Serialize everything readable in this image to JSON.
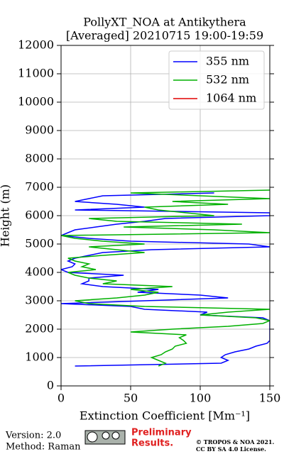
{
  "chart_data": {
    "type": "profile",
    "title": "PollyXT_NOA at Antikythera",
    "subtitle": "[Averaged] 20210715 19:00-19:59",
    "xlabel": "Extinction Coefficient [Mm⁻¹]",
    "ylabel": "Height (m)",
    "xlim": [
      0,
      150
    ],
    "xticks": [
      0,
      50,
      100,
      150
    ],
    "ylim": [
      0,
      12000
    ],
    "yticks": [
      0,
      1000,
      2000,
      3000,
      4000,
      5000,
      6000,
      7000,
      8000,
      9000,
      10000,
      11000,
      12000
    ],
    "grid": true,
    "legend": "upper right",
    "heights": [
      700,
      800,
      900,
      1000,
      1100,
      1200,
      1300,
      1400,
      1500,
      1600,
      1700,
      1800,
      1900,
      2000,
      2100,
      2200,
      2300,
      2400,
      2500,
      2600,
      2700,
      2800,
      2900,
      3000,
      3100,
      3200,
      3300,
      3400,
      3500,
      3600,
      3700,
      3800,
      3900,
      4000,
      4100,
      4200,
      4300,
      4400,
      4500,
      4600,
      4700,
      4800,
      4900,
      5000,
      5100,
      5200,
      5300,
      5400,
      5500,
      5600,
      5700,
      5800,
      5900,
      6000,
      6100,
      6200,
      6300,
      6400,
      6500,
      6600,
      6700,
      6800,
      6900
    ],
    "series": [
      {
        "name": "355 nm",
        "color": "#0000ff",
        "values": [
          10,
          115,
          120,
          115,
          118,
          125,
          135,
          140,
          148,
          150,
          150,
          150,
          150,
          150,
          150,
          150,
          150,
          145,
          100,
          105,
          60,
          50,
          0,
          60,
          120,
          100,
          55,
          70,
          30,
          15,
          20,
          20,
          45,
          5,
          0,
          8,
          10,
          5,
          10,
          20,
          30,
          65,
          150,
          135,
          50,
          20,
          0,
          5,
          10,
          25,
          40,
          60,
          75,
          150,
          150,
          10,
          60,
          40,
          10,
          20,
          30,
          110,
          null
        ]
      },
      {
        "name": "532 nm",
        "color": "#00b000",
        "values": [
          70,
          75,
          70,
          65,
          72,
          75,
          80,
          82,
          90,
          88,
          85,
          90,
          50,
          80,
          120,
          145,
          150,
          140,
          100,
          120,
          150,
          60,
          20,
          10,
          40,
          60,
          70,
          50,
          80,
          30,
          40,
          20,
          10,
          5,
          25,
          15,
          20,
          10,
          5,
          30,
          60,
          40,
          20,
          60,
          30,
          10,
          0,
          150,
          110,
          45,
          130,
          40,
          20,
          110,
          90,
          70,
          60,
          120,
          80,
          150,
          100,
          50,
          150
        ]
      },
      {
        "name": "1064 nm",
        "color": "#e00000",
        "values": [
          null,
          null,
          null,
          null,
          null,
          null,
          null,
          null,
          null,
          null,
          null,
          null,
          null,
          null,
          null,
          null,
          null,
          null,
          null,
          null,
          null,
          null,
          null,
          null,
          null,
          null,
          null,
          null,
          null,
          null,
          null,
          null,
          null,
          null,
          null,
          null,
          null,
          null,
          null,
          null,
          null,
          null,
          null,
          null,
          null,
          null,
          null,
          null,
          null,
          null,
          null,
          null,
          null,
          null,
          null,
          null,
          null,
          null,
          null,
          null,
          null,
          null,
          null
        ]
      }
    ]
  },
  "footer": {
    "version": "Version: 2.0",
    "method": "Method: Raman",
    "preliminary": "Preliminary",
    "results": "Results.",
    "copyright": "© TROPOS & NOA 2021.",
    "license": "CC BY SA 4.0 License."
  }
}
